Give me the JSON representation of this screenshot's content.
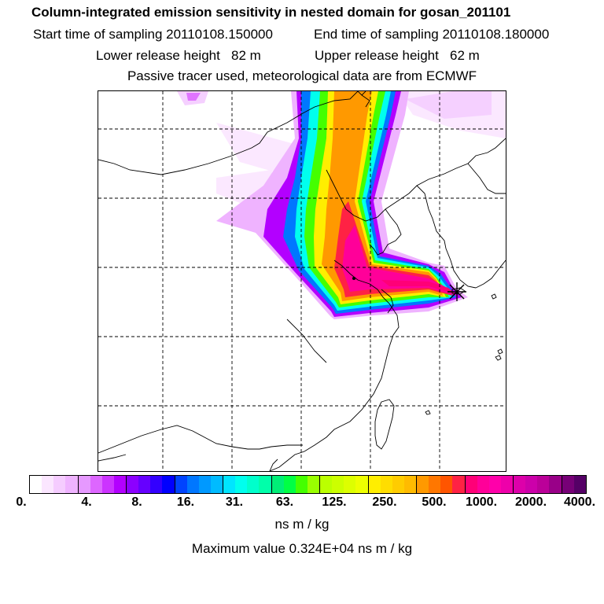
{
  "title": "Column-integrated emission sensitivity in nested domain for gosan_201101",
  "line2_start": "Start time of sampling 20110108.150000",
  "line2_end": "End time of sampling 20110108.180000",
  "line3_lower": "Lower release height   82 m",
  "line3_upper": "Upper release height   62 m",
  "line4": "Passive tracer used, meteorological data are from ECMWF",
  "colorbar": {
    "tick_labels": [
      "0.",
      "4.",
      "8.",
      "16.",
      "31.",
      "63.",
      "125.",
      "250.",
      "500.",
      "1000.",
      "2000.",
      "4000."
    ],
    "colors": [
      "#ffffff",
      "#fbe6ff",
      "#f5ccff",
      "#efb3ff",
      "#e699ff",
      "#dd66ff",
      "#cc33ff",
      "#b300ff",
      "#8c00ff",
      "#6600ff",
      "#3300ff",
      "#0000ff",
      "#0044ff",
      "#0077ff",
      "#0099ff",
      "#00bbff",
      "#00e5ff",
      "#00ffee",
      "#00ffcc",
      "#00ffaa",
      "#00ee77",
      "#00ff44",
      "#44ff00",
      "#99ff00",
      "#bbff00",
      "#ccff00",
      "#ddff00",
      "#eeff00",
      "#ffee00",
      "#ffdd00",
      "#ffcc00",
      "#ffbb00",
      "#ff9900",
      "#ff7700",
      "#ff5500",
      "#ff2244",
      "#ff0077",
      "#ff0099",
      "#ff00aa",
      "#ee00aa",
      "#dd00aa",
      "#cc00aa",
      "#bb0099",
      "#990088",
      "#770077",
      "#550066"
    ]
  },
  "units": "ns m / kg",
  "max_value_text": "Maximum value  0.324E+04 ns m / kg",
  "map": {
    "receptor_marker": "star-marker",
    "gridlines": "dashed",
    "plume_colors": {
      "low": "#f5ccff",
      "violet": "#b300ff",
      "blue": "#0077ff",
      "cyan": "#00ffee",
      "green": "#44ff00",
      "yellow": "#ffee00",
      "orange": "#ff9900",
      "red": "#ff2244",
      "magenta": "#ff0099"
    }
  }
}
